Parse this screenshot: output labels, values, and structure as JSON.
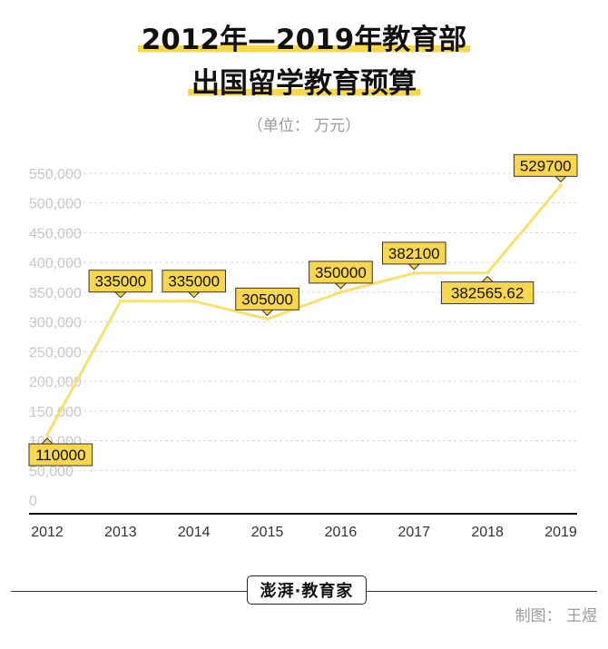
{
  "title_line1": "2012年—2019年教育部",
  "title_line2": "出国留学教育预算",
  "unit": "（单位：  万元）",
  "logo_text": "澎湃·教育家",
  "credit": "制图：  王煜",
  "colors": {
    "line": "#f8e06a",
    "label_bg": "#f8d64e",
    "accent": "#f8d64e",
    "grid": "#d8d8d8",
    "tick": "#c8c8c8"
  },
  "chart_data": {
    "type": "line",
    "categories": [
      "2012",
      "2013",
      "2014",
      "2015",
      "2016",
      "2017",
      "2018",
      "2019"
    ],
    "values": [
      110000,
      335000,
      335000,
      305000,
      350000,
      382100,
      382565.62,
      529700
    ],
    "data_labels": [
      "110000",
      "335000",
      "335000",
      "305000",
      "350000",
      "382100",
      "382565.62",
      "529700"
    ],
    "label_positions": [
      "below",
      "above",
      "above",
      "above",
      "above",
      "above",
      "below",
      "above"
    ],
    "y_ticks": [
      "0",
      "50,000",
      "100,000",
      "150,000",
      "200,000",
      "250,000",
      "300,000",
      "350,000",
      "400,000",
      "450,000",
      "500,000",
      "550,000"
    ],
    "ylim": [
      0,
      550000
    ],
    "grid": true
  }
}
